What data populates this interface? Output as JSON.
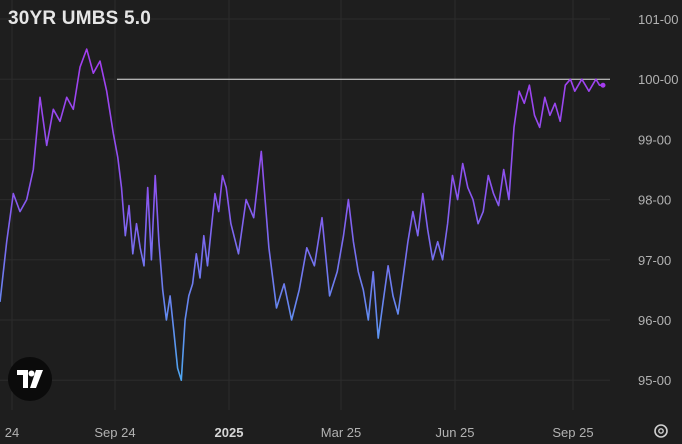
{
  "chart_data": {
    "type": "line",
    "title": "30YR UMBS 5.0",
    "x_tick_labels": [
      "24",
      "Sep 24",
      "2025",
      "Mar 25",
      "Jun 25",
      "Sep 25"
    ],
    "y_tick_labels": [
      "101-00",
      "100-00",
      "99-00",
      "98-00",
      "97-00",
      "96-00",
      "95-00"
    ],
    "ylim": [
      94.5,
      101.3
    ],
    "reference_line": 100.0,
    "grid": true,
    "x": [
      "2024-06-24",
      "2024-06-28",
      "2024-07-02",
      "2024-07-06",
      "2024-07-10",
      "2024-07-14",
      "2024-07-18",
      "2024-07-22",
      "2024-07-26",
      "2024-07-30",
      "2024-08-03",
      "2024-08-07",
      "2024-08-11",
      "2024-08-15",
      "2024-08-19",
      "2024-08-23",
      "2024-08-27",
      "2024-08-31",
      "2024-09-04",
      "2024-09-08",
      "2024-09-12",
      "2024-09-16",
      "2024-09-20",
      "2024-09-24",
      "2024-09-28",
      "2024-10-02",
      "2024-10-06",
      "2024-10-10",
      "2024-10-14",
      "2024-10-18",
      "2024-10-22",
      "2024-10-26",
      "2024-10-30",
      "2024-11-03",
      "2024-11-07",
      "2024-11-11",
      "2024-11-15",
      "2024-11-19",
      "2024-11-23",
      "2024-11-27",
      "2024-12-01",
      "2024-12-05",
      "2024-12-09",
      "2024-12-13",
      "2024-12-17",
      "2024-12-21",
      "2024-12-25",
      "2024-12-29",
      "2025-01-02",
      "2025-01-06",
      "2025-01-10",
      "2025-01-14",
      "2025-01-18",
      "2025-01-22",
      "2025-01-26",
      "2025-01-30",
      "2025-02-03",
      "2025-02-07",
      "2025-02-11",
      "2025-02-15",
      "2025-02-19",
      "2025-02-23",
      "2025-02-27",
      "2025-03-03",
      "2025-03-07",
      "2025-03-11",
      "2025-03-15",
      "2025-03-19",
      "2025-03-23",
      "2025-03-27",
      "2025-03-31",
      "2025-04-04",
      "2025-04-08",
      "2025-04-12",
      "2025-04-16",
      "2025-04-20",
      "2025-04-24",
      "2025-04-28",
      "2025-05-02",
      "2025-05-06",
      "2025-05-10",
      "2025-05-14",
      "2025-05-18",
      "2025-05-22",
      "2025-05-26",
      "2025-05-30",
      "2025-06-03",
      "2025-06-07",
      "2025-06-11",
      "2025-06-15",
      "2025-06-19",
      "2025-06-23",
      "2025-06-27",
      "2025-07-01",
      "2025-07-05",
      "2025-07-09",
      "2025-07-13",
      "2025-07-17",
      "2025-07-21",
      "2025-07-25",
      "2025-07-29",
      "2025-08-02",
      "2025-08-06",
      "2025-08-10",
      "2025-08-14",
      "2025-08-18",
      "2025-08-22",
      "2025-08-26",
      "2025-08-30",
      "2025-09-03",
      "2025-09-07",
      "2025-09-11",
      "2025-09-15",
      "2025-09-19",
      "2025-09-23",
      "2025-09-27",
      "2025-10-01",
      "2025-10-05"
    ],
    "series": [
      {
        "values": [
          96.3,
          97.3,
          98.1,
          97.8,
          98.0,
          98.5,
          99.7,
          98.9,
          99.5,
          99.3,
          99.7,
          99.5,
          100.2,
          100.5,
          100.1,
          100.3,
          99.8,
          99.1,
          98.7,
          98.2,
          97.4,
          97.9,
          97.1,
          97.6,
          97.2,
          96.9,
          98.2,
          97.0,
          98.4,
          97.3,
          96.5,
          96.0,
          96.4,
          95.8,
          95.2,
          95.0,
          96.0,
          96.4,
          96.6,
          97.1,
          96.7,
          97.4,
          96.9,
          97.5,
          98.1,
          97.8,
          98.4,
          98.2,
          97.6,
          97.1,
          98.0,
          97.7,
          98.8,
          97.2,
          96.2,
          96.6,
          96.0,
          96.5,
          97.2,
          96.9,
          97.7,
          96.4,
          96.8,
          97.4,
          98.0,
          97.3,
          96.8,
          96.5,
          96.0,
          96.8,
          95.7,
          96.3,
          96.9,
          96.4,
          96.1,
          96.7,
          97.3,
          97.8,
          97.4,
          98.1,
          97.5,
          97.0,
          97.3,
          97.0,
          97.6,
          98.4,
          98.0,
          98.6,
          98.2,
          98.0,
          97.6,
          97.8,
          98.4,
          98.1,
          97.9,
          98.5,
          98.0,
          99.2,
          99.8,
          99.6,
          99.9,
          99.4,
          99.2,
          99.7,
          99.4,
          99.6,
          99.3,
          99.9,
          100.0,
          99.8,
          99.9,
          100.0,
          99.9,
          99.8,
          99.9,
          100.0,
          99.9,
          99.9
        ]
      }
    ],
    "colors": {
      "background": "#1e1e1e",
      "line_high": "#a63cf0",
      "line_low": "#5ea0f0",
      "grid": "#2c2c2c",
      "reference": "#e0e0e0"
    }
  },
  "ui": {
    "settings_icon": "gear-icon",
    "logo_icon": "tradingview-logo-icon"
  }
}
